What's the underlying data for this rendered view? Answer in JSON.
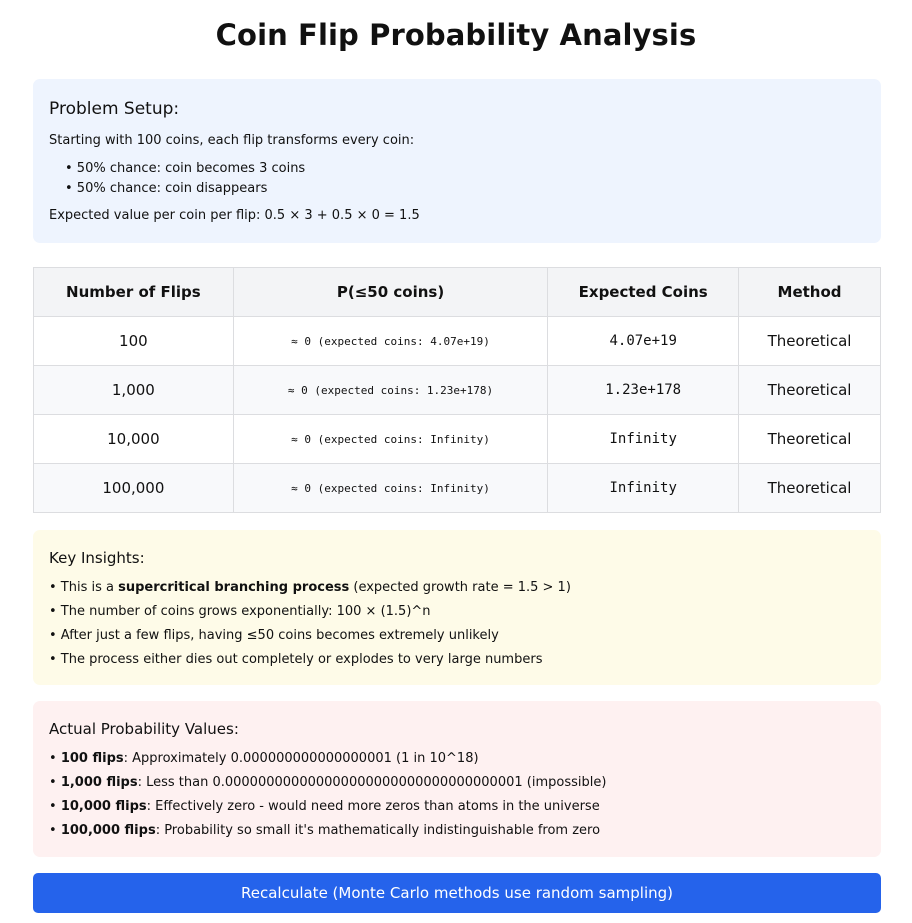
{
  "title": "Coin Flip Probability Analysis",
  "setup": {
    "heading": "Problem Setup:",
    "intro": "Starting with 100 coins, each flip transforms every coin:",
    "bullets": [
      "• 50% chance: coin becomes 3 coins",
      "• 50% chance: coin disappears"
    ],
    "expected": "Expected value per coin per flip: 0.5 × 3 + 0.5 × 0 = 1.5"
  },
  "table": {
    "headers": [
      "Number of Flips",
      "P(≤50 coins)",
      "Expected Coins",
      "Method"
    ],
    "rows": [
      {
        "flips": "100",
        "prob": "≈ 0 (expected coins: 4.07e+19)",
        "expected": "4.07e+19",
        "method": "Theoretical"
      },
      {
        "flips": "1,000",
        "prob": "≈ 0 (expected coins: 1.23e+178)",
        "expected": "1.23e+178",
        "method": "Theoretical"
      },
      {
        "flips": "10,000",
        "prob": "≈ 0 (expected coins: Infinity)",
        "expected": "Infinity",
        "method": "Theoretical"
      },
      {
        "flips": "100,000",
        "prob": "≈ 0 (expected coins: Infinity)",
        "expected": "Infinity",
        "method": "Theoretical"
      }
    ]
  },
  "insights": {
    "heading": "Key Insights:",
    "l1_pre": "• This is a ",
    "l1_bold": "supercritical branching process",
    "l1_post": " (expected growth rate = 1.5 > 1)",
    "l2": "• The number of coins grows exponentially: 100 × (1.5)^n",
    "l3": "• After just a few flips, having ≤50 coins becomes extremely unlikely",
    "l4": "• The process either dies out completely or explodes to very large numbers"
  },
  "actual": {
    "heading": "Actual Probability Values:",
    "items": [
      {
        "bullet": "• ",
        "bold": "100 flips",
        "rest": ": Approximately 0.000000000000000001 (1 in 10^18)"
      },
      {
        "bullet": "• ",
        "bold": "1,000 flips",
        "rest": ": Less than 0.000000000000000000000000000000000001 (impossible)"
      },
      {
        "bullet": "• ",
        "bold": "10,000 flips",
        "rest": ": Effectively zero - would need more zeros than atoms in the universe"
      },
      {
        "bullet": "• ",
        "bold": "100,000 flips",
        "rest": ": Probability so small it's mathematically indistinguishable from zero"
      }
    ]
  },
  "button": {
    "label": "Recalculate (Monte Carlo methods use random sampling)"
  }
}
